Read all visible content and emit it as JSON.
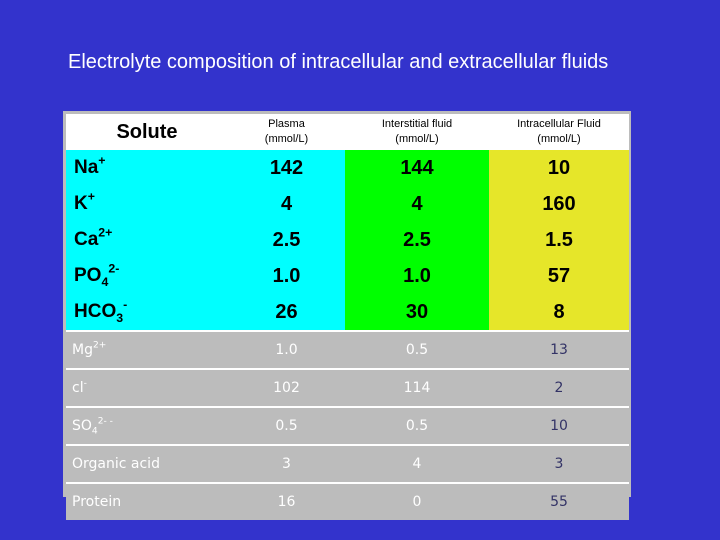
{
  "title": "Electrolyte composition of intracellular and extracellular fluids",
  "headers": {
    "solute": "Solute",
    "plasma_line1": "Plasma",
    "plasma_line2": "(mmol/L)",
    "interstitial_line1": "Interstitial fluid",
    "interstitial_line2": "(mmol/L)",
    "intracellular_line1": "Intracellular Fluid",
    "intracellular_line2": "(mmol/L)"
  },
  "major_rows": [
    {
      "base": "Na",
      "sub": "",
      "sup": "+",
      "plasma": "142",
      "interstitial": "144",
      "intracellular": "10"
    },
    {
      "base": "K",
      "sub": "",
      "sup": "+",
      "plasma": "4",
      "interstitial": "4",
      "intracellular": "160"
    },
    {
      "base": "Ca",
      "sub": "",
      "sup": "2+",
      "plasma": "2.5",
      "interstitial": "2.5",
      "intracellular": "1.5"
    },
    {
      "base": "PO",
      "sub": "4",
      "sup": "2-",
      "plasma": "1.0",
      "interstitial": "1.0",
      "intracellular": "57"
    },
    {
      "base": "HCO",
      "sub": "3",
      "sup": "-",
      "plasma": "26",
      "interstitial": "30",
      "intracellular": "8"
    }
  ],
  "minor_rows": [
    {
      "base": "Mg",
      "sub": "",
      "sup": "2+",
      "plasma": "1.0",
      "interstitial": "0.5",
      "intracellular": "13"
    },
    {
      "base": "cl",
      "sub": "",
      "sup": "-",
      "plasma": "102",
      "interstitial": "114",
      "intracellular": "2"
    },
    {
      "base": "SO",
      "sub": "4",
      "sup": "2- -",
      "plasma": "0.5",
      "interstitial": "0.5",
      "intracellular": "10"
    },
    {
      "base": "Organic acid",
      "sub": "",
      "sup": "",
      "plasma": "3",
      "interstitial": "4",
      "intracellular": "3"
    },
    {
      "base": "Protein",
      "sub": "",
      "sup": "",
      "plasma": "16",
      "interstitial": "0",
      "intracellular": "55"
    }
  ],
  "colors": {
    "background": "#3333cc",
    "plasma_cyan": "#00ffff",
    "interstitial_green": "#00ff00",
    "intracellular_yellow": "#e6e629",
    "minor_grey": "#bcbcbc"
  }
}
